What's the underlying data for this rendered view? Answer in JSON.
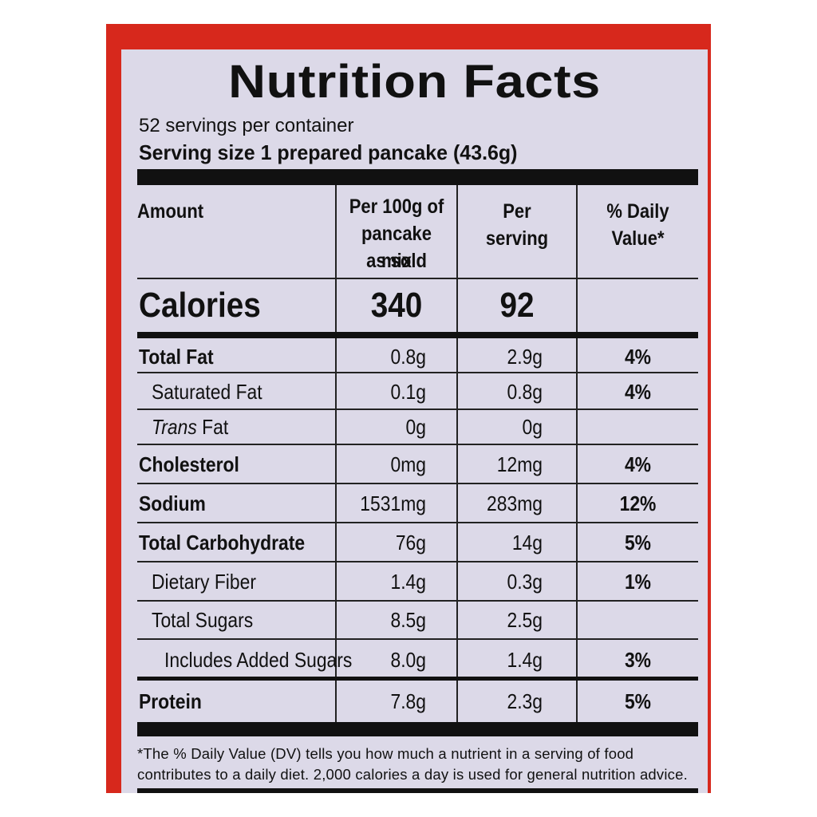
{
  "title": "Nutrition Facts",
  "servings_per_container": "52 servings per container",
  "serving_size": "Serving size 1 prepared pancake (43.6g)",
  "headers": {
    "amount": "Amount",
    "per100_line1": "Per 100g of",
    "per100_line2": "pancake mix",
    "per100_line3": "as sold",
    "perserving_line1": "Per",
    "perserving_line2": "serving",
    "dv_line1": "% Daily",
    "dv_line2": "Value*"
  },
  "calories": {
    "label": "Calories",
    "per100": "340",
    "perserving": "92"
  },
  "rows": [
    {
      "label": "Total Fat",
      "per100": "0.8g",
      "perserving": "2.9g",
      "dv": "4%"
    },
    {
      "label": "Saturated Fat",
      "per100": "0.1g",
      "perserving": "0.8g",
      "dv": "4%"
    },
    {
      "label_italic": "Trans",
      "label_rest": " Fat",
      "per100": "0g",
      "perserving": "0g",
      "dv": ""
    },
    {
      "label": "Cholesterol",
      "per100": "0mg",
      "perserving": "12mg",
      "dv": "4%"
    },
    {
      "label": "Sodium",
      "per100": "1531mg",
      "perserving": "283mg",
      "dv": "12%"
    },
    {
      "label": "Total Carbohydrate",
      "per100": "76g",
      "perserving": "14g",
      "dv": "5%"
    },
    {
      "label": "Dietary Fiber",
      "per100": "1.4g",
      "perserving": "0.3g",
      "dv": "1%"
    },
    {
      "label": "Total Sugars",
      "per100": "8.5g",
      "perserving": "2.5g",
      "dv": ""
    },
    {
      "label": "Includes Added Sugars",
      "per100": "8.0g",
      "perserving": "1.4g",
      "dv": "3%"
    },
    {
      "label": "Protein",
      "per100": "7.8g",
      "perserving": "2.3g",
      "dv": "5%"
    }
  ],
  "footnote_line1": "*The % Daily Value (DV) tells you how much a nutrient in a serving of food",
  "footnote_line2": "contributes to a daily diet. 2,000 calories a day is used for general nutrition advice.",
  "colors": {
    "box": "#d7281c",
    "panel": "#dcd9e8",
    "ink": "#111111"
  }
}
